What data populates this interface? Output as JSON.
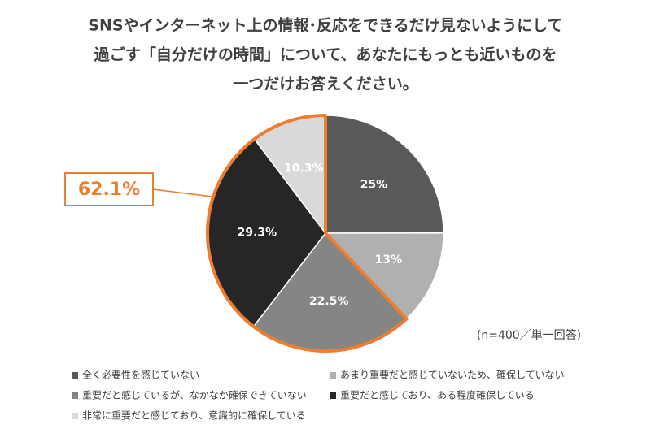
{
  "chart_data": {
    "type": "pie",
    "title": [
      "SNSやインターネット上の情報･反応をできるだけ見ないようにして",
      "過ごす「自分だけの時間」について、あなたにもっとも近いものを",
      "一つだけお答えください。"
    ],
    "categories": [
      "全く必要性を感じていない",
      "あまり重要だと感じていないため、確保していない",
      "重要だと感じているが、なかなか確保できていない",
      "重要だと感じており、ある程度確保している",
      "非常に重要だと感じており、意識的に確保している"
    ],
    "values": [
      25,
      13,
      22.5,
      29.3,
      10.3
    ],
    "value_labels": [
      "25%",
      "13%",
      "22.5%",
      "29.3%",
      "10.3%"
    ],
    "colors": [
      "#595959",
      "#b0b0b0",
      "#858585",
      "#262626",
      "#d9d9d9"
    ],
    "highlight_slices": [
      2,
      3,
      4
    ],
    "highlight_color": "#ed7d31",
    "annotation": "62.1%",
    "note": "(n=400／単一回答)"
  }
}
